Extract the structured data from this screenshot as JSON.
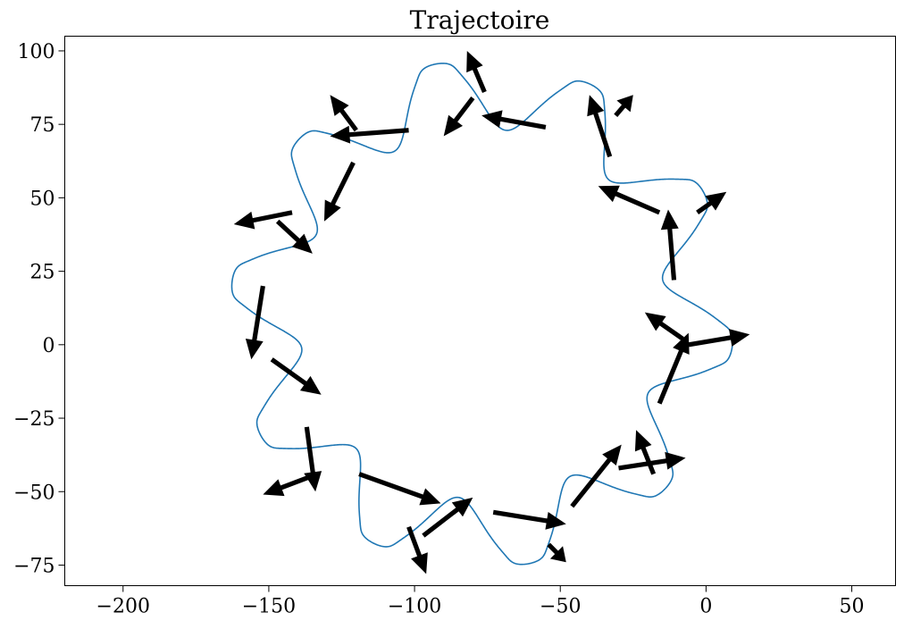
{
  "chart_data": {
    "type": "line",
    "title": "Trajectoire",
    "xlabel": "",
    "ylabel": "",
    "xlim": [
      -220,
      65
    ],
    "ylim": [
      -82,
      105
    ],
    "x_ticks": [
      {
        "value": -200,
        "label": "−200"
      },
      {
        "value": -150,
        "label": "−150"
      },
      {
        "value": -100,
        "label": "−100"
      },
      {
        "value": -50,
        "label": "−50"
      },
      {
        "value": 0,
        "label": "0"
      },
      {
        "value": 50,
        "label": "50"
      }
    ],
    "y_ticks": [
      {
        "value": 100,
        "label": "100"
      },
      {
        "value": 75,
        "label": "75"
      },
      {
        "value": 50,
        "label": "50"
      },
      {
        "value": 25,
        "label": "25"
      },
      {
        "value": 0,
        "label": "0"
      },
      {
        "value": -25,
        "label": "−25"
      },
      {
        "value": -50,
        "label": "−50"
      },
      {
        "value": -75,
        "label": "−75"
      }
    ],
    "grid": false,
    "series": [
      {
        "color": "#1f77b4",
        "center": [
          -76.8,
          10.5
        ],
        "lobes": 10,
        "cusp_radius": 86.5,
        "inner_radius": 63.0,
        "loop_radius": 2.5,
        "start_angle_deg": -7.4
      }
    ],
    "arrows": [
      {
        "x": -6,
        "y": 0,
        "dx": 21,
        "dy": 3.5
      },
      {
        "x": -8,
        "y": 2,
        "dx": -13,
        "dy": 9
      },
      {
        "x": -16,
        "y": -20,
        "dx": 10,
        "dy": 24
      },
      {
        "x": -30,
        "y": -42,
        "dx": 23,
        "dy": 3.5
      },
      {
        "x": -18,
        "y": -44,
        "dx": -6,
        "dy": 15
      },
      {
        "x": -46,
        "y": -55,
        "dx": 17,
        "dy": 21
      },
      {
        "x": -54,
        "y": -68,
        "dx": 6,
        "dy": -6
      },
      {
        "x": -73,
        "y": -57,
        "dx": 25,
        "dy": -4
      },
      {
        "x": -97,
        "y": -65,
        "dx": 17,
        "dy": 13
      },
      {
        "x": -102,
        "y": -62,
        "dx": 6,
        "dy": -16
      },
      {
        "x": -119,
        "y": -44,
        "dx": 28,
        "dy": -10
      },
      {
        "x": -137,
        "y": -28,
        "dx": 3,
        "dy": -22
      },
      {
        "x": -136,
        "y": -45,
        "dx": -16,
        "dy": -6
      },
      {
        "x": -149,
        "y": -5,
        "dx": 17,
        "dy": -12
      },
      {
        "x": -152,
        "y": 20,
        "dx": -4,
        "dy": -25
      },
      {
        "x": -147,
        "y": 42,
        "dx": 12,
        "dy": -11
      },
      {
        "x": -142,
        "y": 45,
        "dx": -20,
        "dy": -4
      },
      {
        "x": -121,
        "y": 62,
        "dx": -10,
        "dy": -20
      },
      {
        "x": -102,
        "y": 73,
        "dx": -27,
        "dy": -2
      },
      {
        "x": -120,
        "y": 73,
        "dx": -9,
        "dy": 12
      },
      {
        "x": -80,
        "y": 84,
        "dx": -10,
        "dy": -13
      },
      {
        "x": -76,
        "y": 86,
        "dx": -6,
        "dy": 14
      },
      {
        "x": -55,
        "y": 74,
        "dx": -22,
        "dy": 4
      },
      {
        "x": -33,
        "y": 64,
        "dx": -7,
        "dy": 21
      },
      {
        "x": -31,
        "y": 78,
        "dx": 6,
        "dy": 7
      },
      {
        "x": -16,
        "y": 45,
        "dx": -21,
        "dy": 9
      },
      {
        "x": -11,
        "y": 22,
        "dx": -2,
        "dy": 24
      },
      {
        "x": -3,
        "y": 45,
        "dx": 10,
        "dy": 7
      }
    ]
  }
}
